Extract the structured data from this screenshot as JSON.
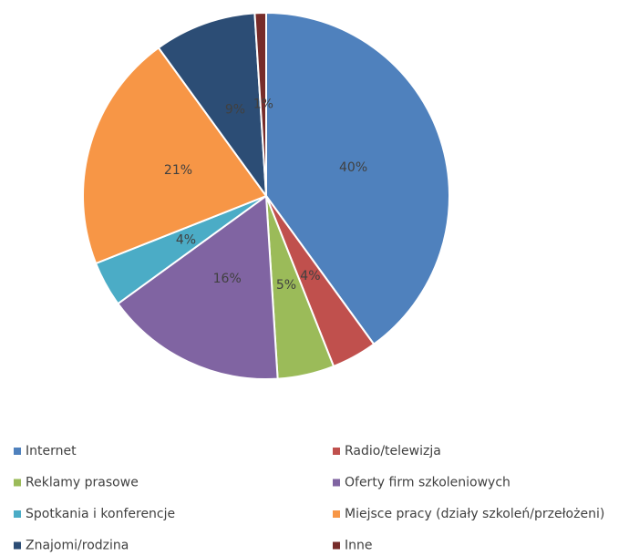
{
  "chart_data": {
    "type": "pie",
    "categories": [
      "Internet",
      "Radio/telewizja",
      "Reklamy prasowe",
      "Oferty firm szkoleniowych",
      "Spotkania i konferencje",
      "Miejsce pracy (działy szkoleń/przełożeni)",
      "Znajomi/rodzina",
      "Inne"
    ],
    "values": [
      40,
      4,
      5,
      16,
      4,
      21,
      9,
      1
    ],
    "value_labels": [
      "40%",
      "4%",
      "5%",
      "16%",
      "4%",
      "21%",
      "9%",
      "1%"
    ],
    "colors": [
      "#4f81bd",
      "#c0504d",
      "#9bbb59",
      "#8064a2",
      "#4bacc6",
      "#f79646",
      "#2c4d75",
      "#772c2a"
    ]
  }
}
